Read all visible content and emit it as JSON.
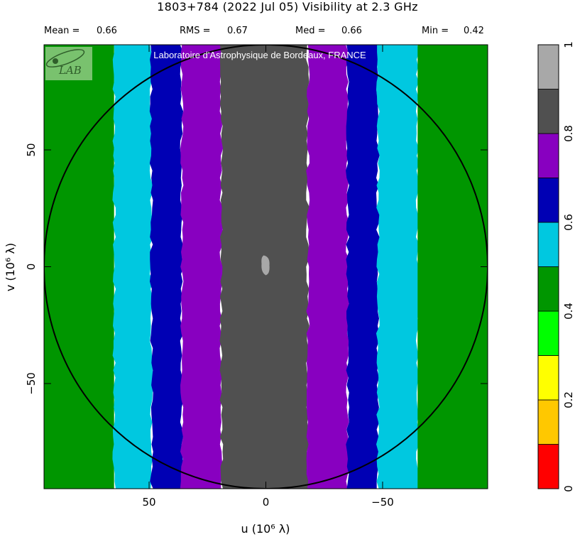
{
  "header": {
    "title": "1803+784   (2022 Jul 05)   Visibility at  2.3 GHz",
    "stats": [
      {
        "label": "Mean =",
        "value": "0.66"
      },
      {
        "label": "RMS =",
        "value": "0.67"
      },
      {
        "label": "Med =",
        "value": "0.66"
      },
      {
        "label": "Min =",
        "value": "0.42"
      }
    ]
  },
  "watermark": {
    "text": "Laboratoire d'Astrophysique de Bordeaux, FRANCE",
    "logo_text": "LAB"
  },
  "chart_data": {
    "type": "heatmap",
    "xlabel": "u  (10⁶ λ)",
    "ylabel": "v  (10⁶ λ)",
    "xlim": [
      95,
      -95
    ],
    "ylim": [
      -95,
      95
    ],
    "x_ticks": [
      50,
      0,
      -50
    ],
    "x_tick_labels": [
      "50",
      "0",
      "−50"
    ],
    "y_ticks": [
      -50,
      0,
      50
    ],
    "y_tick_labels": [
      "−50",
      "0",
      "50"
    ],
    "circle_radius": 95,
    "bands": [
      {
        "u_from": 95,
        "u_to": 65,
        "level": 0.45
      },
      {
        "u_from": 65,
        "u_to": 49,
        "level": 0.55
      },
      {
        "u_from": 49,
        "u_to": 36,
        "level": 0.65
      },
      {
        "u_from": 36,
        "u_to": 19,
        "level": 0.75
      },
      {
        "u_from": 19,
        "u_to": -18,
        "level": 0.85
      },
      {
        "u_from": -18,
        "u_to": -35,
        "level": 0.75
      },
      {
        "u_from": -35,
        "u_to": -48,
        "level": 0.65
      },
      {
        "u_from": -48,
        "u_to": -65,
        "level": 0.55
      },
      {
        "u_from": -65,
        "u_to": -95,
        "level": 0.45
      }
    ],
    "central_patch": {
      "u": 0,
      "v": 0,
      "level": 0.95
    },
    "colorbar": {
      "min": 0,
      "max": 1,
      "tick_values": [
        0,
        0.2,
        0.4,
        0.6,
        0.8,
        1
      ],
      "tick_labels": [
        "0",
        "0.2",
        "0.4",
        "0.6",
        "0.8",
        "1"
      ],
      "levels": [
        {
          "from": 0.0,
          "to": 0.1,
          "color": "#ff0000"
        },
        {
          "from": 0.1,
          "to": 0.2,
          "color": "#ffc800"
        },
        {
          "from": 0.2,
          "to": 0.3,
          "color": "#ffff00"
        },
        {
          "from": 0.3,
          "to": 0.4,
          "color": "#00ff00"
        },
        {
          "from": 0.4,
          "to": 0.5,
          "color": "#009600"
        },
        {
          "from": 0.5,
          "to": 0.6,
          "color": "#00c8e0"
        },
        {
          "from": 0.6,
          "to": 0.7,
          "color": "#0000b4"
        },
        {
          "from": 0.7,
          "to": 0.8,
          "color": "#8800c0"
        },
        {
          "from": 0.8,
          "to": 0.9,
          "color": "#505050"
        },
        {
          "from": 0.9,
          "to": 1.0,
          "color": "#a8a8a8"
        }
      ]
    }
  }
}
